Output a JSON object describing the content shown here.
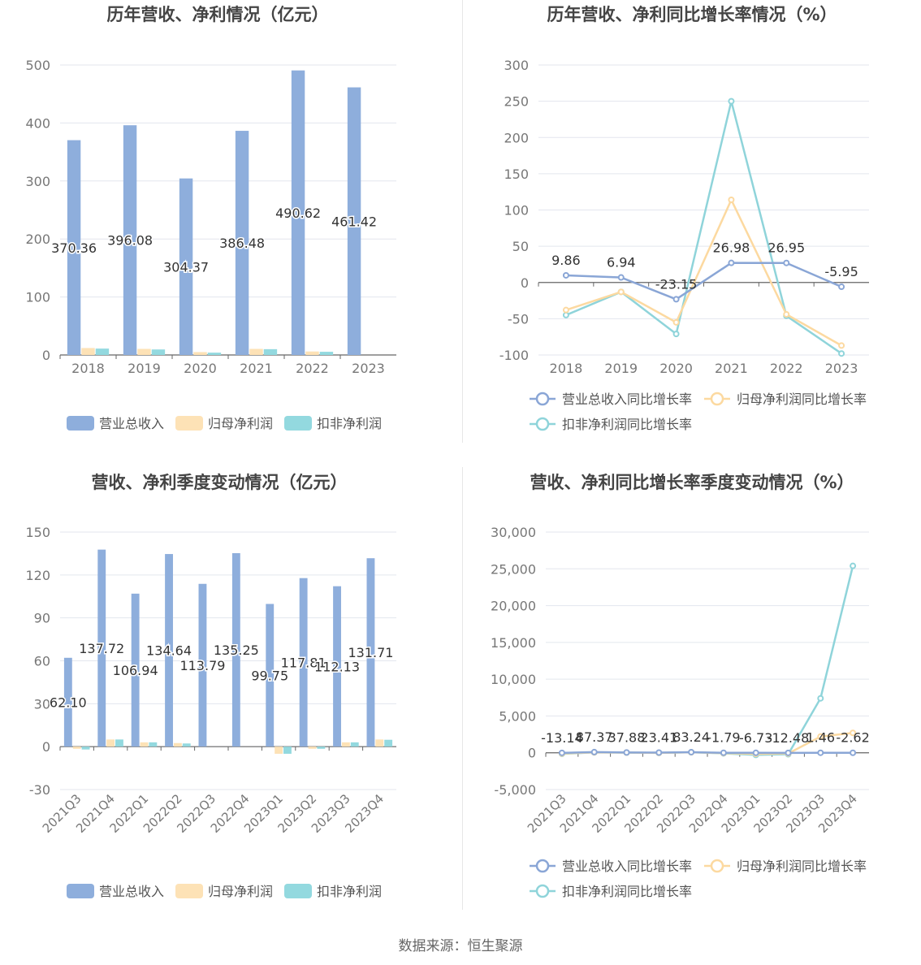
{
  "footer": {
    "source": "数据来源：恒生聚源"
  },
  "colors": {
    "revenue": "#8eaedc",
    "net_profit": "#fde2b6",
    "deducted_profit": "#93d9df",
    "revenue_line": "#8aa6d6",
    "net_line": "#fcd9a0",
    "deducted_line": "#8fd4da"
  },
  "chart_data": [
    {
      "type": "bar",
      "title": "历年营收、净利情况（亿元）",
      "categories": [
        "2018",
        "2019",
        "2020",
        "2021",
        "2022",
        "2023"
      ],
      "ylim": [
        0,
        500
      ],
      "yticks": [
        "0",
        "100",
        "200",
        "300",
        "400",
        "500"
      ],
      "grid": true,
      "legend_position": "bottom",
      "series": [
        {
          "name": "营业总收入",
          "values": [
            370.36,
            396.08,
            304.37,
            386.48,
            490.62,
            461.42
          ],
          "labels": [
            "370.36",
            "396.08",
            "304.37",
            "386.48",
            "490.62",
            "461.42"
          ]
        },
        {
          "name": "归母净利润",
          "values": [
            12.0,
            10.5,
            5.0,
            10.5,
            6.0,
            0
          ]
        },
        {
          "name": "扣非净利润",
          "values": [
            11.0,
            9.5,
            4.0,
            10.0,
            5.5,
            0
          ]
        }
      ]
    },
    {
      "type": "line",
      "title": "历年营收、净利同比增长率情况（%）",
      "categories": [
        "2018",
        "2019",
        "2020",
        "2021",
        "2022",
        "2023"
      ],
      "ylim": [
        -100,
        300
      ],
      "yticks": [
        "-100",
        "-50",
        "0",
        "50",
        "100",
        "150",
        "200",
        "250",
        "300"
      ],
      "grid": true,
      "legend_position": "bottom",
      "series": [
        {
          "name": "营业总收入同比增长率",
          "values": [
            9.86,
            6.94,
            -23.15,
            26.98,
            26.95,
            -5.95
          ],
          "labels": [
            "9.86",
            "6.94",
            "-23.15",
            "26.98",
            "26.95",
            "-5.95"
          ]
        },
        {
          "name": "归母净利润同比增长率",
          "values": [
            -38,
            -13,
            -55,
            114,
            -44,
            -87
          ]
        },
        {
          "name": "扣非净利润同比增长率",
          "values": [
            -45,
            -13,
            -71,
            250,
            -46,
            -98
          ]
        }
      ]
    },
    {
      "type": "bar",
      "title": "营收、净利季度变动情况（亿元）",
      "categories": [
        "2021Q3",
        "2021Q4",
        "2022Q1",
        "2022Q2",
        "2022Q3",
        "2022Q4",
        "2023Q1",
        "2023Q2",
        "2023Q3",
        "2023Q4"
      ],
      "ylim": [
        -30,
        150
      ],
      "yticks": [
        "-30",
        "0",
        "30",
        "60",
        "90",
        "120",
        "150"
      ],
      "grid": true,
      "legend_position": "bottom",
      "series": [
        {
          "name": "营业总收入",
          "values": [
            62.1,
            137.72,
            106.94,
            134.64,
            113.79,
            135.25,
            99.75,
            117.81,
            112.13,
            131.71
          ],
          "labels": [
            "62.10",
            "137.72",
            "106.94",
            "134.64",
            "113.79",
            "135.25",
            "99.75",
            "117.81",
            "112.13",
            "131.71"
          ]
        },
        {
          "name": "归母净利润",
          "values": [
            -1.5,
            5.0,
            3.0,
            2.5,
            0,
            0,
            -5.0,
            -1.5,
            3.0,
            5.0
          ]
        },
        {
          "name": "扣非净利润",
          "values": [
            -2.0,
            5.0,
            3.0,
            2.2,
            0,
            0,
            -5.0,
            -1.5,
            3.0,
            4.8
          ]
        }
      ]
    },
    {
      "type": "line",
      "title": "营收、净利同比增长率季度变动情况（%）",
      "categories": [
        "2021Q3",
        "2021Q4",
        "2022Q1",
        "2022Q2",
        "2022Q3",
        "2022Q4",
        "2023Q1",
        "2023Q2",
        "2023Q3",
        "2023Q4"
      ],
      "ylim": [
        -5000,
        30000
      ],
      "yticks": [
        "-5,000",
        "0",
        "5,000",
        "10,000",
        "15,000",
        "20,000",
        "25,000",
        "30,000"
      ],
      "grid": true,
      "legend_position": "bottom",
      "series": [
        {
          "name": "营业总收入同比增长率",
          "values": [
            -13.14,
            87.37,
            37.88,
            23.41,
            83.24,
            -1.79,
            -6.73,
            -12.48,
            1.46,
            -2.62
          ],
          "labels": [
            "-13.14",
            "87.37",
            "37.88",
            "23.41",
            "83.24",
            "-1.79",
            "-6.73",
            "-12.48",
            "1.46",
            "-2.62"
          ]
        },
        {
          "name": "归母净利润同比增长率",
          "values": [
            -100,
            50,
            20,
            -20,
            60,
            -50,
            -150,
            -100,
            2200,
            2700
          ]
        },
        {
          "name": "扣非净利润同比增长率",
          "values": [
            -150,
            50,
            20,
            -20,
            60,
            -80,
            -300,
            -200,
            7400,
            25400
          ]
        }
      ]
    }
  ]
}
